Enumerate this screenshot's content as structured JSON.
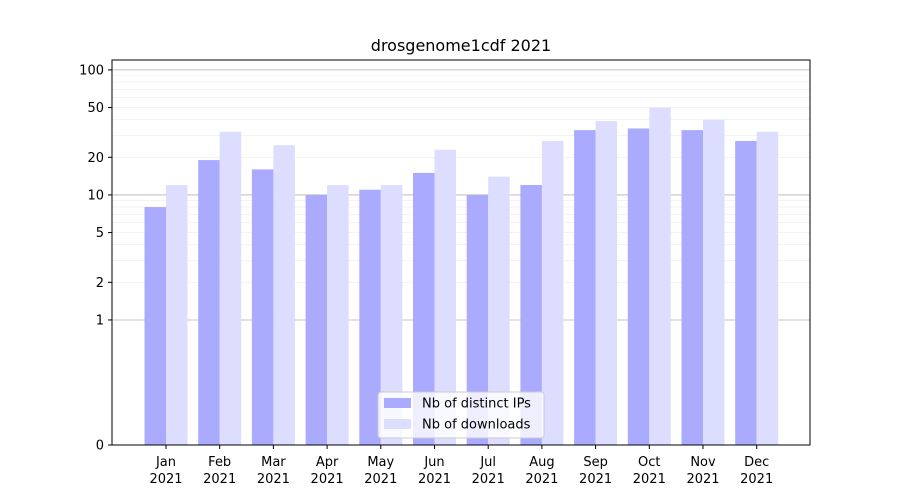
{
  "chart_data": {
    "type": "bar",
    "title": "drosgenome1cdf 2021",
    "xlabel": "",
    "ylabel": "",
    "y_scale": "symlog",
    "ylim": [
      0,
      120
    ],
    "grid": true,
    "legend_position": "bottom-center",
    "y_ticks": [
      {
        "value": 0,
        "label": "0"
      },
      {
        "value": 1,
        "label": "1"
      },
      {
        "value": 2,
        "label": "2"
      },
      {
        "value": 5,
        "label": "5"
      },
      {
        "value": 10,
        "label": "10"
      },
      {
        "value": 20,
        "label": "20"
      },
      {
        "value": 50,
        "label": "50"
      },
      {
        "value": 100,
        "label": "100"
      }
    ],
    "categories": [
      {
        "month": "Jan",
        "year": "2021"
      },
      {
        "month": "Feb",
        "year": "2021"
      },
      {
        "month": "Mar",
        "year": "2021"
      },
      {
        "month": "Apr",
        "year": "2021"
      },
      {
        "month": "May",
        "year": "2021"
      },
      {
        "month": "Jun",
        "year": "2021"
      },
      {
        "month": "Jul",
        "year": "2021"
      },
      {
        "month": "Aug",
        "year": "2021"
      },
      {
        "month": "Sep",
        "year": "2021"
      },
      {
        "month": "Oct",
        "year": "2021"
      },
      {
        "month": "Nov",
        "year": "2021"
      },
      {
        "month": "Dec",
        "year": "2021"
      }
    ],
    "series": [
      {
        "name": "Nb of distinct IPs",
        "color": "#aaaaff",
        "values": [
          8,
          19,
          16,
          10,
          11,
          15,
          10,
          12,
          33,
          34,
          33,
          27
        ]
      },
      {
        "name": "Nb of downloads",
        "color": "#ddddff",
        "values": [
          12,
          32,
          25,
          12,
          12,
          23,
          14,
          27,
          39,
          50,
          40,
          32
        ]
      }
    ]
  }
}
